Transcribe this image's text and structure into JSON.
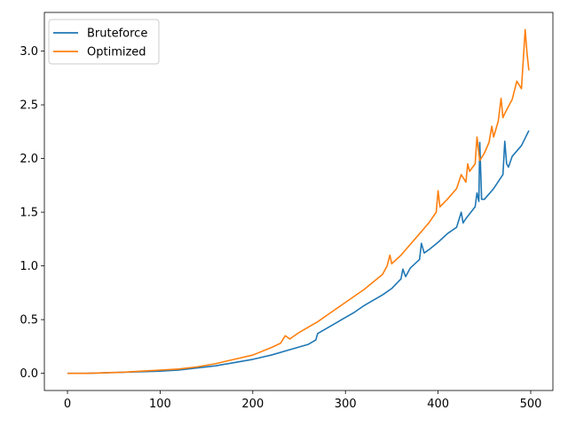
{
  "chart_data": {
    "type": "line",
    "title": "",
    "xlabel": "",
    "ylabel": "",
    "xlim": [
      -24.95,
      523.95
    ],
    "ylim": [
      -0.16,
      3.36
    ],
    "xticks": [
      0,
      100,
      200,
      300,
      400,
      500
    ],
    "yticks": [
      0.0,
      0.5,
      1.0,
      1.5,
      2.0,
      2.5,
      3.0
    ],
    "xtick_labels": [
      "0",
      "100",
      "200",
      "300",
      "400",
      "500"
    ],
    "ytick_labels": [
      "0.0",
      "0.5",
      "1.0",
      "1.5",
      "2.0",
      "2.5",
      "3.0"
    ],
    "grid": false,
    "legend_position": "top-left",
    "series": [
      {
        "name": "Bruteforce",
        "color": "#1f77b4",
        "x": [
          0,
          20,
          40,
          60,
          80,
          100,
          120,
          140,
          160,
          180,
          200,
          220,
          240,
          260,
          268,
          270,
          280,
          290,
          300,
          310,
          320,
          330,
          340,
          350,
          360,
          362,
          365,
          370,
          380,
          382,
          385,
          390,
          400,
          410,
          420,
          425,
          427,
          430,
          440,
          442,
          444,
          445,
          447,
          450,
          460,
          470,
          472,
          474,
          476,
          480,
          490,
          498
        ],
        "y": [
          0.0,
          0.0,
          0.005,
          0.01,
          0.015,
          0.02,
          0.03,
          0.05,
          0.07,
          0.1,
          0.13,
          0.17,
          0.22,
          0.27,
          0.31,
          0.37,
          0.42,
          0.47,
          0.52,
          0.57,
          0.63,
          0.68,
          0.73,
          0.79,
          0.88,
          0.97,
          0.9,
          0.98,
          1.06,
          1.21,
          1.12,
          1.15,
          1.22,
          1.3,
          1.36,
          1.5,
          1.4,
          1.44,
          1.55,
          1.68,
          1.6,
          2.15,
          1.62,
          1.62,
          1.72,
          1.85,
          2.16,
          1.95,
          1.92,
          2.02,
          2.12,
          2.26
        ]
      },
      {
        "name": "Optimized",
        "color": "#ff7f0e",
        "x": [
          0,
          20,
          40,
          60,
          80,
          100,
          120,
          140,
          160,
          180,
          200,
          220,
          230,
          235,
          240,
          250,
          260,
          270,
          280,
          290,
          300,
          310,
          320,
          330,
          340,
          345,
          348,
          350,
          360,
          370,
          380,
          390,
          398,
          400,
          402,
          410,
          420,
          425,
          430,
          432,
          434,
          440,
          442,
          445,
          450,
          455,
          458,
          460,
          465,
          468,
          470,
          472,
          480,
          485,
          490,
          494,
          496,
          498
        ],
        "y": [
          0.0,
          0.0,
          0.005,
          0.01,
          0.02,
          0.03,
          0.04,
          0.06,
          0.09,
          0.13,
          0.17,
          0.24,
          0.28,
          0.35,
          0.32,
          0.38,
          0.43,
          0.48,
          0.54,
          0.6,
          0.66,
          0.72,
          0.78,
          0.85,
          0.92,
          1.0,
          1.1,
          1.02,
          1.1,
          1.2,
          1.3,
          1.4,
          1.5,
          1.7,
          1.55,
          1.62,
          1.72,
          1.85,
          1.78,
          1.95,
          1.88,
          1.95,
          2.2,
          1.98,
          2.05,
          2.15,
          2.3,
          2.2,
          2.35,
          2.56,
          2.38,
          2.42,
          2.55,
          2.72,
          2.65,
          3.2,
          2.98,
          2.82
        ]
      }
    ]
  }
}
